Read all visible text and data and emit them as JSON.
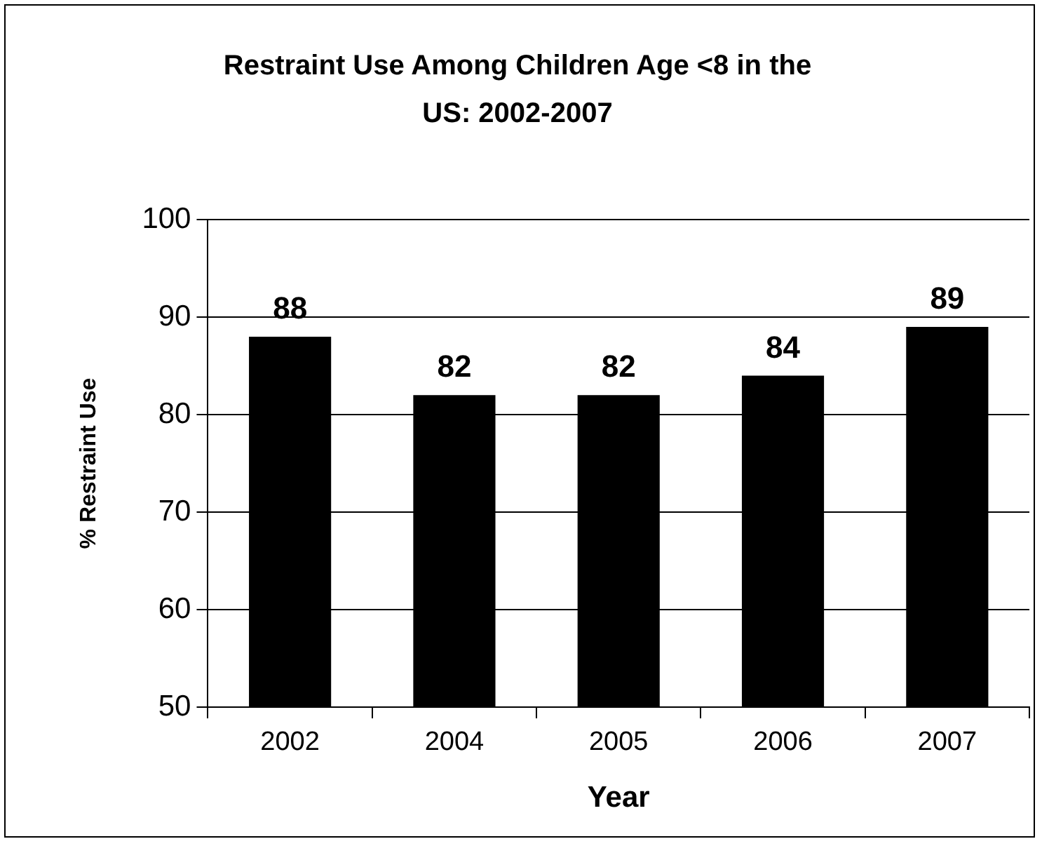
{
  "chart_data": {
    "type": "bar",
    "title": "Restraint Use Among Children Age <8 in the US: 2002-2007",
    "xlabel": "Year",
    "ylabel": "% Restraint Use",
    "categories": [
      "2002",
      "2004",
      "2005",
      "2006",
      "2007"
    ],
    "values": [
      88,
      82,
      82,
      84,
      89
    ],
    "color": "#000000",
    "ylim": [
      50,
      100
    ],
    "yticks": [
      50,
      60,
      70,
      80,
      90,
      100
    ],
    "grid": "y",
    "data_labels": true,
    "legend": false
  }
}
